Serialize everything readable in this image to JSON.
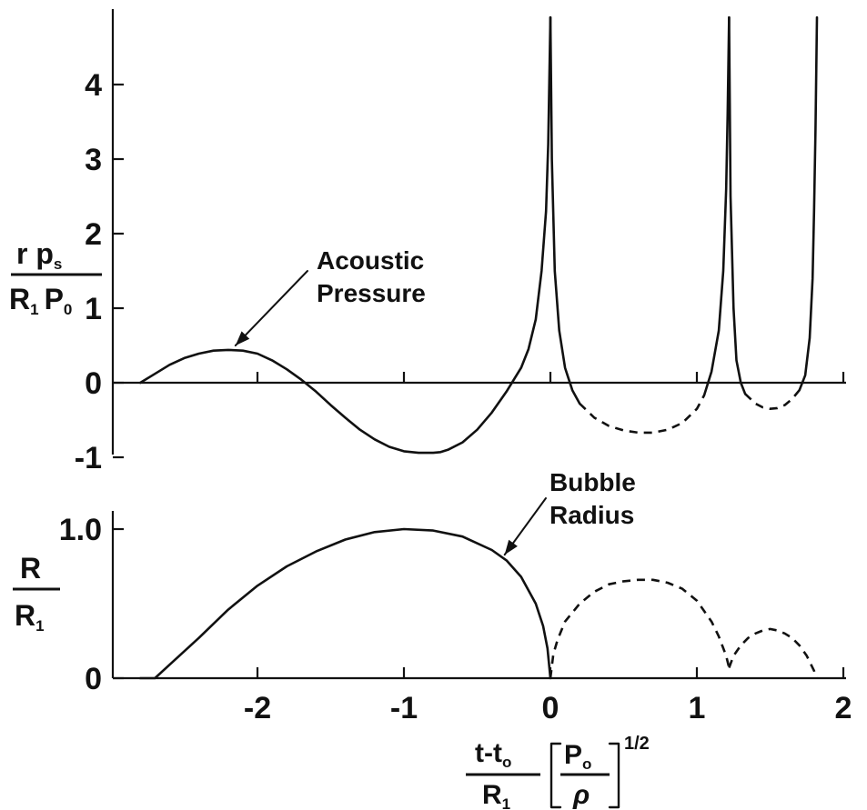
{
  "colors": {
    "ink": "#111111",
    "background": "#ffffff"
  },
  "chart_data": [
    {
      "type": "line",
      "panel": "top",
      "ylabel": {
        "numerator": "r p",
        "numerator_sub": "s",
        "denominator_a": "R",
        "denominator_a_sub": "1",
        "denominator_b": "P",
        "denominator_b_sub": "0"
      },
      "xlim": [
        -2.9,
        2.0
      ],
      "ylim": [
        -1,
        4.9
      ],
      "xticks": [
        -2,
        -1,
        0,
        1,
        2
      ],
      "yticks": [
        -1,
        0,
        1,
        2,
        3,
        4
      ],
      "ytick_labels": [
        "-1",
        "0",
        "1",
        "2",
        "3",
        "4"
      ],
      "grid": false,
      "annotation": {
        "line1": "Acoustic",
        "line2": "Pressure",
        "x": -2.2,
        "y": 0.45
      },
      "series": [
        {
          "style": "solid",
          "x": [
            -2.8,
            -2.7,
            -2.6,
            -2.5,
            -2.4,
            -2.3,
            -2.2,
            -2.1,
            -2.0,
            -1.9,
            -1.8,
            -1.7,
            -1.6,
            -1.5,
            -1.4,
            -1.3,
            -1.2,
            -1.1,
            -1.0,
            -0.9,
            -0.8,
            -0.75,
            -0.7,
            -0.6,
            -0.5,
            -0.4,
            -0.3,
            -0.2,
            -0.15,
            -0.1,
            -0.06,
            -0.03,
            -0.015,
            0.0
          ],
          "y": [
            0.0,
            0.12,
            0.24,
            0.33,
            0.39,
            0.43,
            0.44,
            0.43,
            0.39,
            0.3,
            0.18,
            0.04,
            -0.12,
            -0.3,
            -0.47,
            -0.63,
            -0.76,
            -0.86,
            -0.92,
            -0.94,
            -0.94,
            -0.93,
            -0.9,
            -0.8,
            -0.63,
            -0.4,
            -0.12,
            0.2,
            0.45,
            0.85,
            1.5,
            2.3,
            3.2,
            4.9
          ]
        },
        {
          "style": "solid",
          "x": [
            0.0,
            0.01,
            0.03,
            0.06,
            0.1,
            0.15,
            0.2
          ],
          "y": [
            4.9,
            3.0,
            1.5,
            0.7,
            0.2,
            -0.1,
            -0.28
          ]
        },
        {
          "style": "dashed",
          "x": [
            0.2,
            0.3,
            0.4,
            0.5,
            0.6,
            0.7,
            0.8,
            0.9,
            1.0,
            1.05
          ],
          "y": [
            -0.28,
            -0.47,
            -0.58,
            -0.64,
            -0.67,
            -0.67,
            -0.63,
            -0.54,
            -0.35,
            -0.17
          ]
        },
        {
          "style": "solid",
          "x": [
            1.05,
            1.1,
            1.15,
            1.18,
            1.2,
            1.21,
            1.22
          ],
          "y": [
            -0.17,
            0.15,
            0.7,
            1.5,
            2.6,
            3.6,
            4.9
          ]
        },
        {
          "style": "solid",
          "x": [
            1.22,
            1.23,
            1.25,
            1.27,
            1.3,
            1.33
          ],
          "y": [
            4.9,
            2.5,
            1.0,
            0.3,
            0.0,
            -0.15
          ]
        },
        {
          "style": "dashed",
          "x": [
            1.33,
            1.4,
            1.45,
            1.5,
            1.55,
            1.6,
            1.65,
            1.7
          ],
          "y": [
            -0.15,
            -0.28,
            -0.33,
            -0.35,
            -0.34,
            -0.3,
            -0.22,
            -0.1
          ]
        },
        {
          "style": "solid",
          "x": [
            1.7,
            1.74,
            1.77,
            1.79,
            1.8,
            1.81,
            1.82
          ],
          "y": [
            -0.1,
            0.1,
            0.6,
            1.4,
            2.3,
            3.4,
            4.9
          ]
        }
      ]
    },
    {
      "type": "line",
      "panel": "bottom",
      "ylabel": {
        "numerator": "R",
        "denominator": "R",
        "denominator_sub": "1"
      },
      "xlabel": {
        "numerator": "t-t",
        "numerator_sub": "o",
        "denominator": "R",
        "denominator_sub": "1",
        "bracket_numerator": "P",
        "bracket_numerator_sub": "o",
        "bracket_denominator": "ρ",
        "exponent": "1/2"
      },
      "xlim": [
        -2.9,
        2.0
      ],
      "ylim": [
        0,
        1.0
      ],
      "xticks": [
        -2,
        -1,
        0,
        1,
        2
      ],
      "xtick_labels": [
        "-2",
        "-1",
        "0",
        "1",
        "2"
      ],
      "yticks": [
        0,
        1.0
      ],
      "ytick_labels": [
        "0",
        "1.0"
      ],
      "grid": false,
      "annotation": {
        "line1": "Bubble",
        "line2": "Radius",
        "x": -0.35,
        "y": 0.84
      },
      "series": [
        {
          "style": "solid",
          "x": [
            -2.8,
            -2.7,
            -2.6,
            -2.4,
            -2.2,
            -2.0,
            -1.8,
            -1.6,
            -1.4,
            -1.2,
            -1.0,
            -0.8,
            -0.6,
            -0.4,
            -0.3,
            -0.2,
            -0.1,
            -0.05,
            -0.02,
            0.0
          ],
          "y": [
            0.0,
            0.0,
            0.09,
            0.27,
            0.46,
            0.62,
            0.75,
            0.85,
            0.93,
            0.98,
            1.0,
            0.99,
            0.95,
            0.86,
            0.79,
            0.68,
            0.5,
            0.35,
            0.2,
            0.0
          ]
        },
        {
          "style": "dashed",
          "x": [
            0.0,
            0.02,
            0.05,
            0.1,
            0.2,
            0.3,
            0.4,
            0.5,
            0.6,
            0.7,
            0.8,
            0.9,
            1.0,
            1.1,
            1.15,
            1.2,
            1.22
          ],
          "y": [
            0.0,
            0.16,
            0.26,
            0.38,
            0.5,
            0.58,
            0.63,
            0.65,
            0.66,
            0.66,
            0.64,
            0.6,
            0.52,
            0.38,
            0.28,
            0.15,
            0.07
          ]
        },
        {
          "style": "dashed",
          "x": [
            1.22,
            1.25,
            1.3,
            1.35,
            1.4,
            1.45,
            1.5,
            1.55,
            1.6,
            1.65,
            1.7,
            1.75,
            1.8,
            1.82
          ],
          "y": [
            0.07,
            0.15,
            0.22,
            0.27,
            0.3,
            0.32,
            0.33,
            0.32,
            0.3,
            0.27,
            0.22,
            0.15,
            0.05,
            0.0
          ]
        }
      ]
    }
  ]
}
